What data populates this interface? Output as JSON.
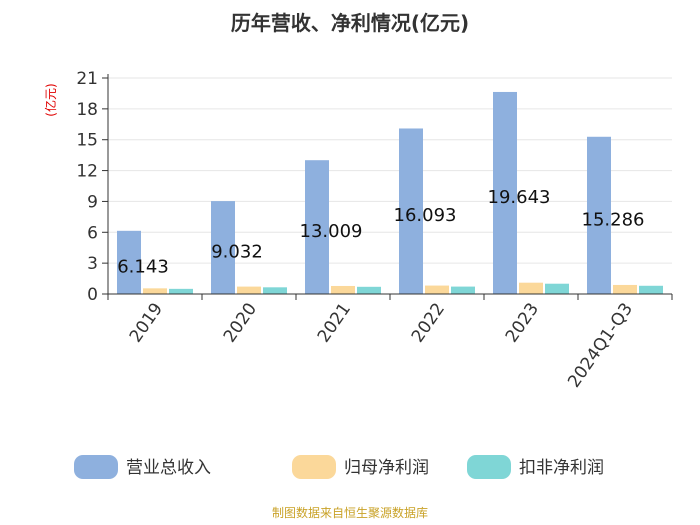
{
  "chart_data": {
    "type": "bar",
    "title": "历年营收、净利情况(亿元)",
    "ylabel": "(亿元)",
    "categories": [
      "2019",
      "2020",
      "2021",
      "2022",
      "2023",
      "2024Q1-Q3"
    ],
    "ylim": [
      0,
      21
    ],
    "yticks": [
      0,
      3,
      6,
      9,
      12,
      15,
      18,
      21
    ],
    "grid": true,
    "legend_position": "bottom",
    "series": [
      {
        "name": "营业总收入",
        "color": "#8eb0de",
        "values": [
          6.143,
          9.032,
          13.009,
          16.093,
          19.643,
          15.286
        ],
        "data_labels": [
          "6.143",
          "9.032",
          "13.009",
          "16.093",
          "19.643",
          "15.286"
        ]
      },
      {
        "name": "归母净利润",
        "color": "#fbd89a",
        "values": [
          0.55,
          0.72,
          0.78,
          0.82,
          1.1,
          0.88
        ]
      },
      {
        "name": "扣非净利润",
        "color": "#7fd6d6",
        "values": [
          0.5,
          0.65,
          0.7,
          0.72,
          1.0,
          0.8
        ]
      }
    ]
  },
  "source": "制图数据来自恒生聚源数据库"
}
